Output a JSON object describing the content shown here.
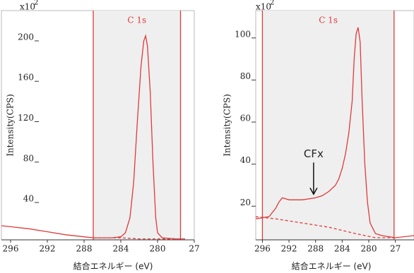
{
  "chart_data": [
    {
      "type": "line",
      "title": "C 1s",
      "xlabel": "結合エネルギー (eV)",
      "ylabel": "Intensity(CPS)",
      "y_multiplier": {
        "base": "x10",
        "exponent": "2"
      },
      "xlim": [
        297,
        276
      ],
      "ylim": [
        3,
        230
      ],
      "xticks": [
        296,
        292,
        288,
        284,
        280,
        {
          "value": 276,
          "label": "27"
        }
      ],
      "yticks": [
        40,
        80,
        120,
        160,
        200
      ],
      "markers": [
        287,
        277.5
      ],
      "marker_color": "#e03a3a",
      "series": [
        {
          "color": "#e03a3a",
          "dashed": false,
          "x": [
            297,
            296,
            294,
            292,
            290,
            288,
            287,
            285,
            284,
            283.5,
            283,
            282.6,
            282.2,
            281.8,
            281.5,
            281.3,
            281.1,
            280.8,
            280.5,
            280.2,
            280,
            279.5,
            278,
            277
          ],
          "values": [
            17,
            16,
            14,
            11,
            8,
            6,
            5,
            5,
            6,
            10,
            25,
            60,
            120,
            175,
            200,
            205,
            195,
            150,
            80,
            25,
            10,
            5,
            4,
            4
          ]
        },
        {
          "color": "#e03a3a",
          "dashed": true,
          "x": [
            287,
            284,
            282,
            280,
            277.5
          ],
          "values": [
            5,
            5,
            4,
            4,
            3.5
          ]
        }
      ]
    },
    {
      "type": "line",
      "title": "C 1s",
      "xlabel": "結合エネルギー (eV)",
      "ylabel": "Intensity(CPS)",
      "y_multiplier": {
        "base": "x10",
        "exponent": "2"
      },
      "xlim": [
        297,
        273.2
      ],
      "ylim": [
        4,
        113
      ],
      "xticks": [
        296,
        292,
        288,
        284,
        280,
        {
          "value": 276,
          "label": "27"
        }
      ],
      "yticks": [
        20,
        40,
        60,
        80,
        100
      ],
      "markers": [
        296,
        276.2
      ],
      "marker_color": "#e03a3a",
      "annotation": {
        "text": "CFx",
        "x": 288.3,
        "y": 24
      },
      "series": [
        {
          "color": "#e03a3a",
          "dashed": false,
          "x": [
            297,
            295,
            294,
            293.5,
            293,
            292,
            290,
            288,
            287,
            286,
            285,
            284.5,
            284,
            283.5,
            283,
            282.5,
            282.2,
            281.9,
            281.6,
            281.3,
            281,
            280.6,
            280.2,
            279.8,
            279,
            278,
            276,
            273.2
          ],
          "values": [
            14,
            15,
            19,
            22,
            24,
            23,
            23,
            24,
            25,
            27,
            30,
            33,
            38,
            45,
            55,
            70,
            90,
            102,
            105,
            98,
            70,
            40,
            22,
            12,
            7,
            6,
            5,
            6
          ]
        },
        {
          "color": "#e03a3a",
          "dashed": true,
          "x": [
            297,
            294,
            290,
            286,
            282,
            279,
            276
          ],
          "values": [
            15,
            14,
            12,
            10,
            7,
            5,
            5
          ]
        }
      ]
    }
  ]
}
